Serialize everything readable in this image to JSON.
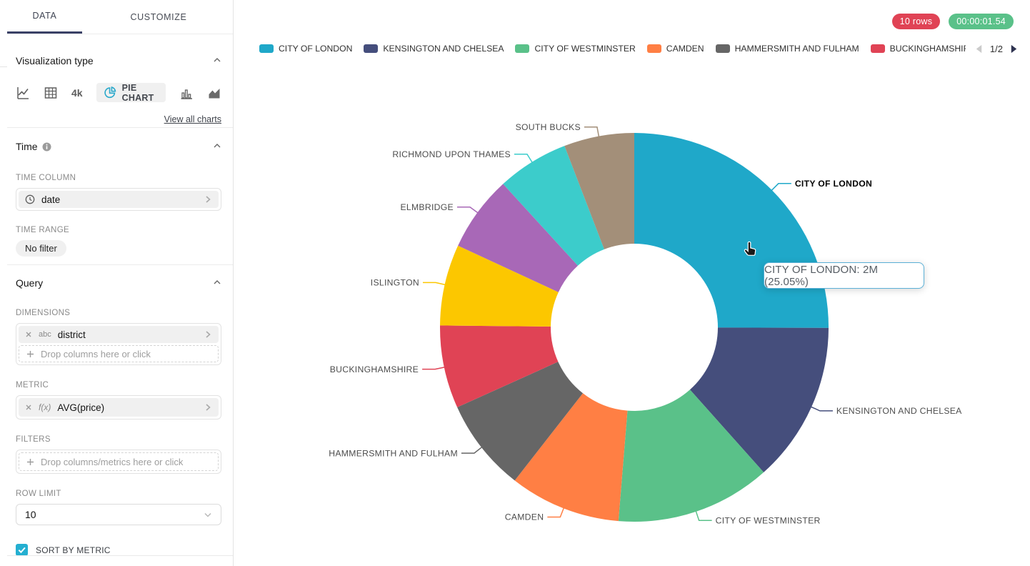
{
  "sidebar": {
    "tabs": [
      {
        "label": "DATA",
        "active": true
      },
      {
        "label": "CUSTOMIZE",
        "active": false
      }
    ],
    "visualization": {
      "title": "Visualization type",
      "big_number_icon_label": "4k",
      "selected_chart": "PIE CHART",
      "view_all_link": "View all charts"
    },
    "time": {
      "title": "Time",
      "column_label": "TIME COLUMN",
      "column_value": "date",
      "range_label": "TIME RANGE",
      "range_value": "No filter"
    },
    "query": {
      "title": "Query",
      "dimensions_label": "DIMENSIONS",
      "dimension_chip": {
        "type": "abc",
        "name": "district"
      },
      "dimensions_placeholder": "Drop columns here or click",
      "metric_label": "METRIC",
      "metric_chip": {
        "type": "f(x)",
        "name": "AVG(price)"
      },
      "filters_label": "FILTERS",
      "filters_placeholder": "Drop columns/metrics here or click",
      "row_limit_label": "ROW LIMIT",
      "row_limit_value": "10",
      "sort_by_metric": {
        "label": "SORT BY METRIC",
        "checked": true
      }
    }
  },
  "status": {
    "rows_badge": "10 rows",
    "duration_badge": "00:00:01.54",
    "rows_badge_color": "#E04355",
    "duration_badge_color": "#5AC189"
  },
  "legend": {
    "visible_items": 6,
    "partial_swatch_index": 6,
    "page_label": "1/2"
  },
  "tooltip": {
    "text": "CITY OF LONDON: 2M (25.05%)"
  },
  "chart_data": {
    "type": "pie",
    "donut": true,
    "label_position": "outside",
    "legend_position": "top",
    "metric": "AVG(price)",
    "hovered_slice": "CITY OF LONDON",
    "hovered_value_label": "2M",
    "slices": [
      {
        "label": "CITY OF LONDON",
        "percent": 25.05,
        "color": "#1FA8C9",
        "hovered": true
      },
      {
        "label": "KENSINGTON AND CHELSEA",
        "percent": 13.35,
        "color": "#454E7C"
      },
      {
        "label": "CITY OF WESTMINSTER",
        "percent": 12.9,
        "color": "#5AC189"
      },
      {
        "label": "CAMDEN",
        "percent": 9.25,
        "color": "#FF7F44"
      },
      {
        "label": "HAMMERSMITH AND FULHAM",
        "percent": 7.7,
        "color": "#666666"
      },
      {
        "label": "BUCKINGHAMSHIRE",
        "percent": 6.9,
        "color": "#E04355"
      },
      {
        "label": "ISLINGTON",
        "percent": 6.75,
        "color": "#FCC700"
      },
      {
        "label": "ELMBRIDGE",
        "percent": 6.3,
        "color": "#A868B7"
      },
      {
        "label": "RICHMOND UPON THAMES",
        "percent": 5.95,
        "color": "#3CCCCB"
      },
      {
        "label": "SOUTH BUCKS",
        "percent": 5.85,
        "color": "#A38F79"
      }
    ]
  }
}
